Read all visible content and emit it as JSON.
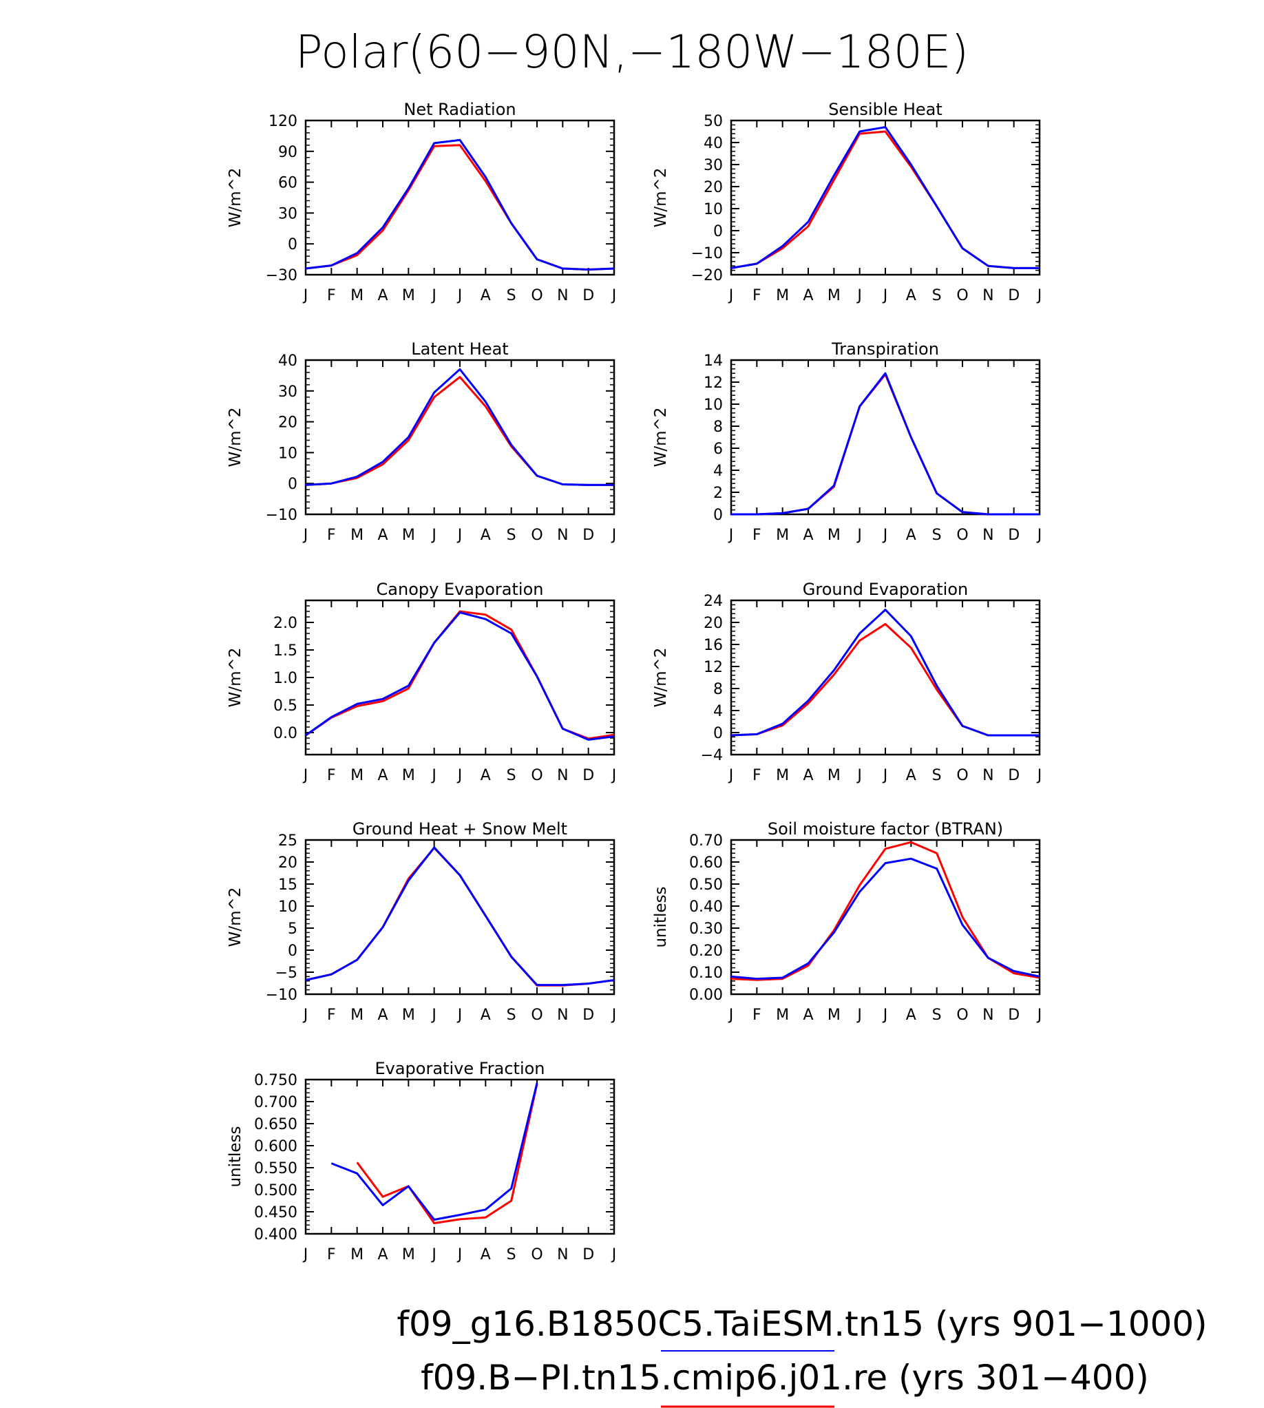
{
  "title": "Polar(60−90N,−180W−180E)",
  "months": [
    "J",
    "F",
    "M",
    "A",
    "M",
    "J",
    "J",
    "A",
    "S",
    "O",
    "N",
    "D",
    "J"
  ],
  "legend": [
    {
      "label": "f09_g16.B1850C5.TaiESM.tn15 (yrs 901−1000)",
      "color": "#0000ff"
    },
    {
      "label": "f09.B−PI.tn15.cmip6.j01.re (yrs 301−400)",
      "color": "#ff0000"
    }
  ],
  "series_colors": {
    "blue": "#0000ff",
    "red": "#ff0000"
  },
  "chart_data": [
    {
      "type": "line",
      "title": "Net Radiation",
      "ylabel": "W/m^2",
      "ylim": [
        -30,
        120
      ],
      "yticks": [
        "−30",
        "0",
        "30",
        "60",
        "90",
        "120"
      ],
      "ytick_values": [
        -30,
        0,
        30,
        60,
        90,
        120
      ],
      "series": [
        {
          "color": "blue",
          "values": [
            -24,
            -21,
            -9,
            16,
            54,
            98,
            101,
            65,
            20,
            -15,
            -24,
            -25,
            -24
          ]
        },
        {
          "color": "red",
          "values": [
            -24,
            -21,
            -11,
            13,
            52,
            95,
            96,
            61,
            20,
            -15,
            -24,
            -25,
            -24
          ]
        }
      ]
    },
    {
      "type": "line",
      "title": "Sensible Heat",
      "ylabel": "W/m^2",
      "ylim": [
        -20,
        50
      ],
      "yticks": [
        "−20",
        "−10",
        "0",
        "10",
        "20",
        "30",
        "40",
        "50"
      ],
      "ytick_values": [
        -20,
        -10,
        0,
        10,
        20,
        30,
        40,
        50
      ],
      "series": [
        {
          "color": "blue",
          "values": [
            -17,
            -15,
            -7,
            4,
            25,
            45,
            47,
            30,
            11,
            -8,
            -16,
            -17,
            -17
          ]
        },
        {
          "color": "red",
          "values": [
            -17,
            -15,
            -8,
            2,
            23,
            44,
            45,
            29,
            11,
            -8,
            -16,
            -17,
            -17
          ]
        }
      ]
    },
    {
      "type": "line",
      "title": "Latent Heat",
      "ylabel": "W/m^2",
      "ylim": [
        -10,
        40
      ],
      "yticks": [
        "−10",
        "0",
        "10",
        "20",
        "30",
        "40"
      ],
      "ytick_values": [
        -10,
        0,
        10,
        20,
        30,
        40
      ],
      "series": [
        {
          "color": "blue",
          "values": [
            -0.5,
            0,
            2.2,
            7,
            15,
            29.5,
            37,
            26.5,
            12.5,
            2.5,
            -0.3,
            -0.5,
            -0.5
          ]
        },
        {
          "color": "red",
          "values": [
            -0.5,
            0,
            1.8,
            6.2,
            14,
            28,
            34.5,
            25,
            12,
            2.5,
            -0.3,
            -0.5,
            -0.5
          ]
        }
      ]
    },
    {
      "type": "line",
      "title": "Transpiration",
      "ylabel": "W/m^2",
      "ylim": [
        0,
        14
      ],
      "yticks": [
        "0",
        "2",
        "4",
        "6",
        "8",
        "10",
        "12",
        "14"
      ],
      "ytick_values": [
        0,
        2,
        4,
        6,
        8,
        10,
        12,
        14
      ],
      "series": [
        {
          "color": "blue",
          "values": [
            0,
            0,
            0.1,
            0.5,
            2.6,
            9.8,
            12.8,
            7,
            1.9,
            0.2,
            0,
            0,
            0
          ]
        },
        {
          "color": "red",
          "values": [
            0,
            0,
            0.1,
            0.5,
            2.5,
            9.8,
            12.7,
            7,
            1.9,
            0.2,
            0,
            0,
            0
          ]
        }
      ]
    },
    {
      "type": "line",
      "title": "Canopy Evaporation",
      "ylabel": "W/m^2",
      "ylim": [
        -0.4,
        2.4
      ],
      "yticks": [
        "0.0",
        "0.5",
        "1.0",
        "1.5",
        "2.0"
      ],
      "ytick_values": [
        0,
        0.5,
        1,
        1.5,
        2
      ],
      "series": [
        {
          "color": "blue",
          "values": [
            -0.05,
            0.28,
            0.52,
            0.61,
            0.85,
            1.63,
            2.18,
            2.06,
            1.8,
            1.02,
            0.07,
            -0.13,
            -0.07
          ]
        },
        {
          "color": "red",
          "values": [
            -0.05,
            0.27,
            0.48,
            0.57,
            0.8,
            1.63,
            2.2,
            2.14,
            1.87,
            1.02,
            0.07,
            -0.11,
            -0.04
          ]
        }
      ]
    },
    {
      "type": "line",
      "title": "Ground Evaporation",
      "ylabel": "W/m^2",
      "ylim": [
        -4,
        24
      ],
      "yticks": [
        "−4",
        "0",
        "4",
        "8",
        "12",
        "16",
        "20",
        "24"
      ],
      "ytick_values": [
        -4,
        0,
        4,
        8,
        12,
        16,
        20,
        24
      ],
      "series": [
        {
          "color": "blue",
          "values": [
            -0.5,
            -0.3,
            1.6,
            5.8,
            11.3,
            18,
            22.3,
            17.5,
            8.5,
            1.2,
            -0.5,
            -0.5,
            -0.5
          ]
        },
        {
          "color": "red",
          "values": [
            -0.5,
            -0.3,
            1.3,
            5.3,
            10.5,
            16.7,
            19.7,
            15.4,
            7.8,
            1.2,
            -0.5,
            -0.5,
            -0.5
          ]
        }
      ]
    },
    {
      "type": "line",
      "title": "Ground Heat + Snow Melt",
      "ylabel": "W/m^2",
      "ylim": [
        -10,
        25
      ],
      "yticks": [
        "−10",
        "−5",
        "0",
        "5",
        "10",
        "15",
        "20",
        "25"
      ],
      "ytick_values": [
        -10,
        -5,
        0,
        5,
        10,
        15,
        20,
        25
      ],
      "series": [
        {
          "color": "blue",
          "values": [
            -6.8,
            -5.5,
            -2.2,
            5.2,
            15.8,
            23.3,
            17,
            7.8,
            -1.5,
            -7.9,
            -7.9,
            -7.6,
            -6.8
          ]
        },
        {
          "color": "red",
          "values": [
            -6.8,
            -5.5,
            -2.2,
            5.2,
            16.2,
            23.2,
            17,
            7.8,
            -1.5,
            -8,
            -8,
            -7.6,
            -6.8
          ]
        }
      ]
    },
    {
      "type": "line",
      "title": "Soil moisture factor (BTRAN)",
      "ylabel": "unitless",
      "ylim": [
        0,
        0.7
      ],
      "yticks": [
        "0.00",
        "0.10",
        "0.20",
        "0.30",
        "0.40",
        "0.50",
        "0.60",
        "0.70"
      ],
      "ytick_values": [
        0,
        0.1,
        0.2,
        0.3,
        0.4,
        0.5,
        0.6,
        0.7
      ],
      "series": [
        {
          "color": "blue",
          "values": [
            0.08,
            0.07,
            0.075,
            0.14,
            0.28,
            0.465,
            0.595,
            0.615,
            0.57,
            0.315,
            0.165,
            0.105,
            0.08
          ]
        },
        {
          "color": "red",
          "values": [
            0.07,
            0.065,
            0.07,
            0.13,
            0.29,
            0.495,
            0.66,
            0.69,
            0.64,
            0.35,
            0.165,
            0.095,
            0.075
          ]
        }
      ]
    },
    {
      "type": "line",
      "title": "Evaporative Fraction",
      "ylabel": "unitless",
      "ylim": [
        0.4,
        0.75
      ],
      "yticks": [
        "0.400",
        "0.450",
        "0.500",
        "0.550",
        "0.600",
        "0.650",
        "0.700",
        "0.750"
      ],
      "ytick_values": [
        0.4,
        0.45,
        0.5,
        0.55,
        0.6,
        0.65,
        0.7,
        0.75
      ],
      "series": [
        {
          "color": "blue",
          "values": [
            null,
            0.56,
            0.537,
            0.465,
            0.508,
            0.432,
            0.443,
            0.455,
            0.503,
            0.742,
            null,
            null,
            null
          ]
        },
        {
          "color": "red",
          "values": [
            null,
            null,
            0.562,
            0.484,
            0.508,
            0.424,
            0.433,
            0.437,
            0.475,
            0.74,
            null,
            null,
            null
          ]
        }
      ]
    }
  ]
}
